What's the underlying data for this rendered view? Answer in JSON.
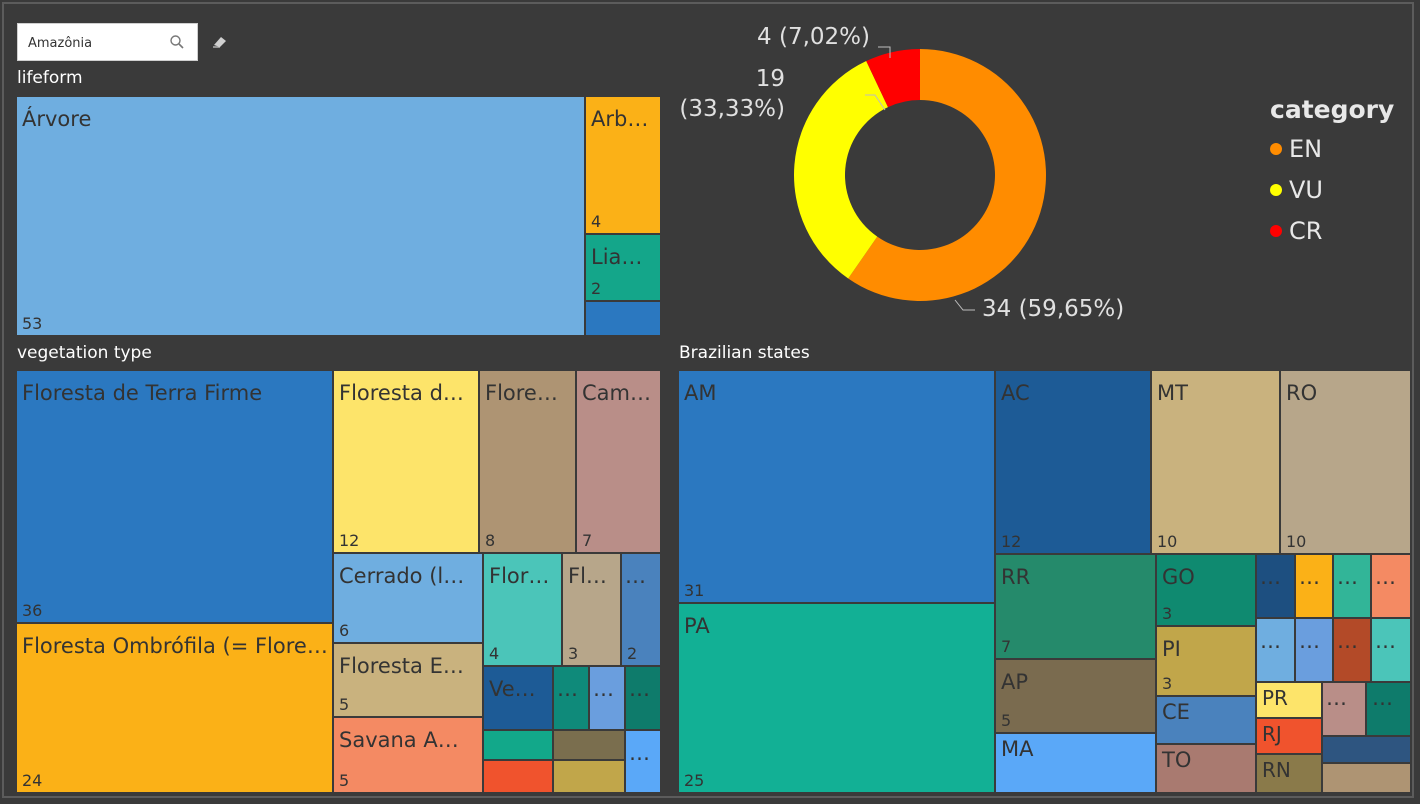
{
  "search": {
    "value": "Amazônia"
  },
  "titles": {
    "lifeform": "lifeform",
    "vegetation": "vegetation type",
    "states": "Brazilian states"
  },
  "lifeform": [
    {
      "label": "Árvore",
      "value": "53",
      "color": "#6faee0"
    },
    {
      "label": "Arb…",
      "value": "4",
      "color": "#fbb117"
    },
    {
      "label": "Lia…",
      "value": "2",
      "color": "#14a68a"
    },
    {
      "label": "",
      "value": "",
      "color": "#2b78c0"
    }
  ],
  "vegetation": [
    {
      "label": "Floresta de Terra Firme",
      "value": "36",
      "color": "#2b78c0"
    },
    {
      "label": "Floresta Ombrófila (= Flore…",
      "value": "24",
      "color": "#fbb117"
    },
    {
      "label": "Floresta d…",
      "value": "12",
      "color": "#fde46a"
    },
    {
      "label": "Flore…",
      "value": "8",
      "color": "#ae9473"
    },
    {
      "label": "Cam…",
      "value": "7",
      "color": "#b98e88"
    },
    {
      "label": "Cerrado (l…",
      "value": "6",
      "color": "#6faee0"
    },
    {
      "label": "Floresta E…",
      "value": "5",
      "color": "#c9b27e"
    },
    {
      "label": "Savana A…",
      "value": "5",
      "color": "#f48a63"
    },
    {
      "label": "Flor…",
      "value": "4",
      "color": "#4bc5b9"
    },
    {
      "label": "Fl…",
      "value": "3",
      "color": "#b7a68a"
    },
    {
      "label": "…",
      "value": "2",
      "color": "#4a82bd"
    },
    {
      "label": "Ve…",
      "value": "",
      "color": "#1d5b96"
    },
    {
      "label": "…",
      "value": "",
      "color": "#0f8a7a"
    },
    {
      "label": "…",
      "value": "",
      "color": "#6a9ede"
    },
    {
      "label": "…",
      "value": "",
      "color": "#0e7b6b"
    },
    {
      "label": "",
      "value": "",
      "color": "#12a88a"
    },
    {
      "label": "",
      "value": "",
      "color": "#7a6e4e"
    },
    {
      "label": "…",
      "value": "",
      "color": "#5aa8f8"
    },
    {
      "label": "",
      "value": "",
      "color": "#f0532d"
    },
    {
      "label": "",
      "value": "",
      "color": "#c1a64a"
    }
  ],
  "states": [
    {
      "label": "AM",
      "value": "31",
      "color": "#2b78c0"
    },
    {
      "label": "PA",
      "value": "25",
      "color": "#12b095"
    },
    {
      "label": "AC",
      "value": "12",
      "color": "#1d5b96"
    },
    {
      "label": "MT",
      "value": "10",
      "color": "#c9b27e"
    },
    {
      "label": "RO",
      "value": "10",
      "color": "#b7a68a"
    },
    {
      "label": "RR",
      "value": "7",
      "color": "#258a6b"
    },
    {
      "label": "AP",
      "value": "5",
      "color": "#7a6b4f"
    },
    {
      "label": "MA",
      "value": "",
      "color": "#5aa8f8"
    },
    {
      "label": "GO",
      "value": "3",
      "color": "#0f8a70"
    },
    {
      "label": "PI",
      "value": "3",
      "color": "#c1a64a"
    },
    {
      "label": "CE",
      "value": "",
      "color": "#4a82bd"
    },
    {
      "label": "TO",
      "value": "",
      "color": "#a97a70"
    },
    {
      "label": "…",
      "value": "",
      "color": "#1d4f80"
    },
    {
      "label": "…",
      "value": "",
      "color": "#fbb117"
    },
    {
      "label": "…",
      "value": "",
      "color": "#32b598"
    },
    {
      "label": "…",
      "value": "",
      "color": "#f48a63"
    },
    {
      "label": "…",
      "value": "",
      "color": "#6faee0"
    },
    {
      "label": "…",
      "value": "",
      "color": "#6a9ede"
    },
    {
      "label": "…",
      "value": "",
      "color": "#b34a28"
    },
    {
      "label": "…",
      "value": "",
      "color": "#4bc5b9"
    },
    {
      "label": "PR",
      "value": "",
      "color": "#fde46a"
    },
    {
      "label": "…",
      "value": "",
      "color": "#b98e88"
    },
    {
      "label": "…",
      "value": "",
      "color": "#0e7b6b"
    },
    {
      "label": "RJ",
      "value": "",
      "color": "#f0532d"
    },
    {
      "label": "",
      "value": "",
      "color": "#2e5580"
    },
    {
      "label": "RN",
      "value": "",
      "color": "#8a7a4a"
    },
    {
      "label": "",
      "value": "",
      "color": "#ae9473"
    }
  ],
  "chart_data": {
    "type": "pie",
    "categories": [
      "EN",
      "VU",
      "CR"
    ],
    "values": [
      34,
      19,
      4
    ],
    "labels": [
      "34 (59,65%)",
      "19 (33,33%)",
      "4 (7,02%)"
    ],
    "colors": [
      "#ff8c00",
      "#ffff00",
      "#ff0000"
    ],
    "legend_title": "category",
    "legend_position": "right"
  }
}
